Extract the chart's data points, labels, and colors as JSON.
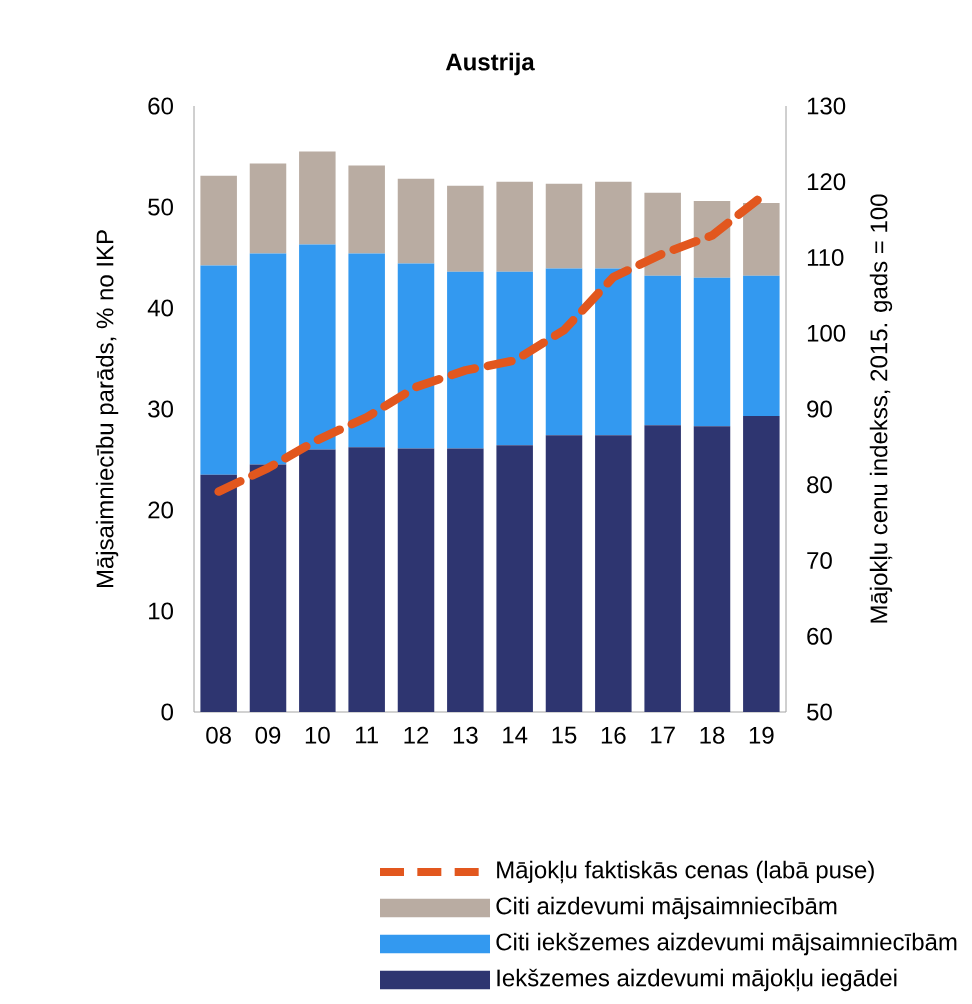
{
  "chart_data": {
    "type": "bar",
    "title": "Austrija",
    "ylabel": "Mājsaimniecību parāds, % no IKP",
    "y2label": "Mājokļu cenu indekss, 2015. gads = 100",
    "categories": [
      "08",
      "09",
      "10",
      "11",
      "12",
      "13",
      "14",
      "15",
      "16",
      "17",
      "18",
      "19"
    ],
    "stacked": true,
    "series": [
      {
        "name": "Iekšzemes aizdevumi mājokļu iegādei",
        "color": "#2e3570",
        "values": [
          23.5,
          24.5,
          26.0,
          26.2,
          26.1,
          26.1,
          26.4,
          27.4,
          27.4,
          28.4,
          28.3,
          29.3
        ]
      },
      {
        "name": "Citi iekšzemes aizdevumi mājsaimniecībām",
        "color": "#3399f0",
        "values": [
          20.7,
          20.9,
          20.3,
          19.2,
          18.3,
          17.5,
          17.2,
          16.5,
          16.5,
          14.8,
          14.7,
          13.9
        ]
      },
      {
        "name": "Citi aizdevumi mājsaimniecībām",
        "color": "#b9aca2",
        "values": [
          8.9,
          8.9,
          9.2,
          8.7,
          8.4,
          8.5,
          8.9,
          8.4,
          8.6,
          8.2,
          7.6,
          7.2
        ]
      },
      {
        "name": "Mājokļu faktiskās cenas (labā puse)",
        "type": "line",
        "axis": "y2",
        "line_style": "dashed",
        "color": "#e2571e",
        "values": [
          79.1,
          82.2,
          85.9,
          88.9,
          92.9,
          95.1,
          96.4,
          100.4,
          107.4,
          110.5,
          112.9,
          118.0
        ]
      }
    ],
    "ylim": [
      0,
      60
    ],
    "yticks": [
      0,
      10,
      20,
      30,
      40,
      50,
      60
    ],
    "y2lim": [
      50,
      130
    ],
    "y2ticks": [
      50,
      60,
      70,
      80,
      90,
      100,
      110,
      120,
      130
    ],
    "legend": "bottom"
  }
}
